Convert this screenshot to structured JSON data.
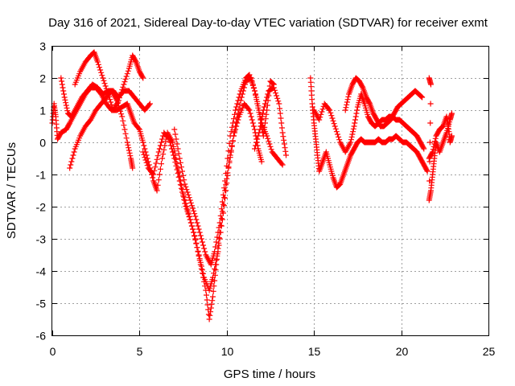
{
  "chart_data": {
    "type": "scatter",
    "title": "Day 316 of 2021, Sidereal Day-to-day VTEC variation (SDTVAR) for receiver exmt",
    "xlabel": "GPS time / hours",
    "ylabel": "SDTVAR / TECUs",
    "xlim": [
      0,
      25
    ],
    "ylim": [
      -6,
      3
    ],
    "xticks": [
      0,
      5,
      10,
      15,
      20,
      25
    ],
    "yticks": [
      -6,
      -5,
      -4,
      -3,
      -2,
      -1,
      0,
      1,
      2,
      3
    ],
    "grid": true,
    "marker": "plus",
    "color": "#ff0000",
    "series": [
      {
        "segments": [
          [
            [
              0.0,
              0.6
            ],
            [
              0.1,
              1.2
            ],
            [
              0.2,
              0.8
            ],
            [
              0.3,
              0.1
            ],
            [
              0.5,
              0.3
            ],
            [
              0.8,
              0.4
            ],
            [
              1.0,
              0.6
            ],
            [
              1.3,
              0.9
            ],
            [
              1.6,
              1.2
            ],
            [
              1.9,
              1.5
            ],
            [
              2.2,
              1.7
            ],
            [
              2.5,
              1.7
            ],
            [
              2.8,
              1.5
            ],
            [
              3.1,
              1.2
            ],
            [
              3.4,
              1.0
            ],
            [
              3.7,
              1.0
            ],
            [
              4.0,
              1.1
            ],
            [
              4.3,
              1.2
            ],
            [
              4.5,
              0.9
            ],
            [
              4.7,
              0.6
            ],
            [
              5.0,
              0.4
            ],
            [
              5.2,
              0.0
            ],
            [
              5.5,
              -0.6
            ],
            [
              5.8,
              -1.2
            ],
            [
              6.0,
              -1.5
            ],
            [
              6.3,
              -0.5
            ],
            [
              6.6,
              0.3
            ],
            [
              6.9,
              0.0
            ],
            [
              7.2,
              -0.8
            ],
            [
              7.5,
              -1.6
            ],
            [
              7.8,
              -2.2
            ],
            [
              8.1,
              -2.8
            ],
            [
              8.4,
              -3.5
            ],
            [
              8.7,
              -4.2
            ],
            [
              9.0,
              -4.6
            ],
            [
              9.2,
              -4.2
            ],
            [
              9.5,
              -3.4
            ],
            [
              9.8,
              -2.2
            ],
            [
              10.1,
              -0.8
            ],
            [
              10.4,
              0.2
            ],
            [
              10.7,
              0.8
            ],
            [
              11.0,
              1.2
            ],
            [
              11.3,
              1.0
            ],
            [
              11.6,
              0.4
            ],
            [
              11.8,
              -0.2
            ],
            [
              12.0,
              -0.6
            ]
          ],
          [
            [
              0.5,
              2.0
            ],
            [
              0.7,
              1.4
            ],
            [
              0.9,
              0.9
            ],
            [
              1.1,
              0.8
            ],
            [
              1.4,
              1.1
            ],
            [
              1.7,
              1.4
            ],
            [
              2.0,
              1.6
            ],
            [
              2.3,
              1.8
            ],
            [
              2.6,
              1.7
            ],
            [
              2.9,
              1.5
            ],
            [
              3.2,
              1.6
            ],
            [
              3.5,
              1.6
            ],
            [
              3.8,
              1.4
            ],
            [
              4.1,
              1.6
            ],
            [
              4.4,
              1.6
            ],
            [
              4.7,
              1.4
            ],
            [
              5.0,
              1.2
            ],
            [
              5.3,
              1.0
            ],
            [
              5.6,
              1.2
            ]
          ],
          [
            [
              1.0,
              -0.8
            ],
            [
              1.3,
              -0.2
            ],
            [
              1.6,
              0.2
            ],
            [
              1.9,
              0.5
            ],
            [
              2.2,
              0.7
            ],
            [
              2.5,
              1.0
            ],
            [
              2.8,
              1.2
            ],
            [
              3.1,
              1.4
            ],
            [
              3.4,
              1.6
            ],
            [
              3.7,
              1.3
            ],
            [
              4.0,
              0.8
            ],
            [
              4.3,
              0.0
            ],
            [
              4.5,
              -0.5
            ],
            [
              4.6,
              -0.8
            ]
          ],
          [
            [
              1.3,
              1.8
            ],
            [
              1.6,
              2.2
            ],
            [
              1.9,
              2.5
            ],
            [
              2.2,
              2.7
            ],
            [
              2.4,
              2.8
            ],
            [
              2.6,
              2.5
            ],
            [
              2.9,
              2.0
            ],
            [
              3.2,
              1.5
            ],
            [
              3.5,
              1.0
            ],
            [
              3.8,
              1.3
            ],
            [
              4.1,
              1.8
            ],
            [
              4.4,
              2.3
            ],
            [
              4.6,
              2.7
            ],
            [
              4.8,
              2.5
            ],
            [
              5.0,
              2.2
            ],
            [
              5.2,
              2.0
            ]
          ],
          [
            [
              5.2,
              -0.3
            ],
            [
              5.5,
              -0.8
            ],
            [
              5.8,
              -1.0
            ],
            [
              6.1,
              -0.3
            ],
            [
              6.4,
              0.3
            ],
            [
              6.7,
              0.1
            ],
            [
              7.0,
              -0.5
            ],
            [
              7.3,
              -1.2
            ],
            [
              7.6,
              -1.9
            ],
            [
              7.9,
              -2.4
            ],
            [
              8.2,
              -3.0
            ],
            [
              8.5,
              -3.8
            ],
            [
              8.8,
              -4.6
            ],
            [
              9.0,
              -5.5
            ],
            [
              9.2,
              -4.8
            ],
            [
              9.4,
              -3.8
            ],
            [
              9.6,
              -2.8
            ],
            [
              9.9,
              -1.5
            ],
            [
              10.2,
              -0.4
            ],
            [
              10.5,
              0.5
            ],
            [
              10.8,
              1.3
            ],
            [
              11.1,
              1.9
            ],
            [
              11.4,
              2.0
            ],
            [
              11.7,
              1.4
            ],
            [
              12.0,
              0.6
            ],
            [
              12.3,
              0.2
            ],
            [
              12.6,
              -0.3
            ],
            [
              12.9,
              -0.5
            ],
            [
              13.2,
              -0.7
            ]
          ],
          [
            [
              7.0,
              0.4
            ],
            [
              7.3,
              -0.5
            ],
            [
              7.6,
              -1.3
            ],
            [
              7.9,
              -1.8
            ],
            [
              8.2,
              -2.3
            ],
            [
              8.5,
              -2.9
            ],
            [
              8.8,
              -3.5
            ],
            [
              9.1,
              -3.8
            ],
            [
              9.3,
              -3.4
            ],
            [
              9.6,
              -2.5
            ],
            [
              9.9,
              -1.2
            ],
            [
              10.2,
              0.2
            ],
            [
              10.5,
              1.0
            ],
            [
              10.8,
              1.6
            ],
            [
              11.1,
              2.0
            ],
            [
              11.3,
              2.1
            ],
            [
              11.6,
              1.6
            ],
            [
              11.9,
              0.8
            ],
            [
              12.1,
              0.2
            ],
            [
              12.3,
              1.0
            ],
            [
              12.5,
              1.9
            ],
            [
              12.7,
              1.8
            ]
          ],
          [
            [
              11.6,
              -0.2
            ],
            [
              11.9,
              0.4
            ],
            [
              12.1,
              1.0
            ],
            [
              12.4,
              1.6
            ],
            [
              12.7,
              1.7
            ],
            [
              13.0,
              1.2
            ],
            [
              13.2,
              0.3
            ],
            [
              13.4,
              -0.4
            ]
          ],
          [
            [
              14.8,
              2.0
            ],
            [
              14.9,
              1.2
            ],
            [
              15.0,
              0.6
            ],
            [
              15.1,
              0.1
            ],
            [
              15.2,
              -0.4
            ],
            [
              15.3,
              -0.9
            ],
            [
              15.5,
              -0.6
            ],
            [
              15.7,
              -0.3
            ],
            [
              15.9,
              -0.7
            ],
            [
              16.1,
              -1.1
            ],
            [
              16.3,
              -1.4
            ],
            [
              16.5,
              -1.3
            ],
            [
              16.7,
              -1.0
            ],
            [
              16.9,
              -0.7
            ],
            [
              17.1,
              -0.4
            ],
            [
              17.3,
              -0.2
            ],
            [
              17.5,
              0.0
            ],
            [
              17.7,
              0.1
            ],
            [
              17.9,
              0.0
            ],
            [
              18.1,
              0.0
            ],
            [
              18.3,
              0.0
            ],
            [
              18.5,
              0.0
            ],
            [
              18.7,
              0.1
            ],
            [
              18.9,
              0.0
            ],
            [
              19.1,
              0.0
            ],
            [
              19.3,
              0.1
            ],
            [
              19.5,
              0.1
            ],
            [
              19.7,
              0.2
            ],
            [
              19.9,
              0.1
            ],
            [
              20.1,
              0.0
            ],
            [
              20.3,
              0.0
            ],
            [
              20.5,
              -0.1
            ],
            [
              20.7,
              -0.2
            ],
            [
              20.9,
              -0.3
            ],
            [
              21.1,
              -0.5
            ],
            [
              21.3,
              -0.7
            ],
            [
              21.5,
              -0.9
            ]
          ],
          [
            [
              15.0,
              1.0
            ],
            [
              15.3,
              0.7
            ],
            [
              15.6,
              1.2
            ],
            [
              15.9,
              1.0
            ],
            [
              16.2,
              0.5
            ],
            [
              16.5,
              0.0
            ],
            [
              16.8,
              -0.3
            ],
            [
              17.1,
              0.0
            ],
            [
              17.3,
              0.5
            ],
            [
              17.5,
              1.1
            ],
            [
              17.7,
              1.5
            ],
            [
              17.9,
              1.2
            ],
            [
              18.1,
              0.8
            ],
            [
              18.3,
              0.6
            ],
            [
              18.5,
              0.5
            ],
            [
              18.7,
              0.6
            ],
            [
              18.9,
              0.7
            ],
            [
              19.1,
              0.7
            ],
            [
              19.3,
              0.8
            ],
            [
              19.5,
              0.8
            ],
            [
              19.7,
              0.7
            ],
            [
              19.9,
              0.7
            ],
            [
              20.1,
              0.6
            ],
            [
              20.3,
              0.5
            ],
            [
              20.5,
              0.4
            ],
            [
              20.7,
              0.3
            ],
            [
              20.9,
              0.2
            ],
            [
              21.1,
              0.0
            ],
            [
              21.3,
              -0.2
            ]
          ],
          [
            [
              16.8,
              1.0
            ],
            [
              17.0,
              1.5
            ],
            [
              17.2,
              1.8
            ],
            [
              17.4,
              2.0
            ],
            [
              17.6,
              1.9
            ],
            [
              17.8,
              1.7
            ],
            [
              18.0,
              1.4
            ],
            [
              18.2,
              1.2
            ],
            [
              18.4,
              0.9
            ],
            [
              18.6,
              0.7
            ],
            [
              18.8,
              0.5
            ],
            [
              19.0,
              0.5
            ],
            [
              19.2,
              0.6
            ],
            [
              19.4,
              0.7
            ],
            [
              19.6,
              0.9
            ],
            [
              19.8,
              1.1
            ],
            [
              20.0,
              1.2
            ],
            [
              20.2,
              1.3
            ],
            [
              20.4,
              1.4
            ],
            [
              20.6,
              1.5
            ],
            [
              20.8,
              1.6
            ],
            [
              21.0,
              1.5
            ],
            [
              21.2,
              1.4
            ]
          ],
          [
            [
              21.6,
              2.0
            ],
            [
              21.7,
              1.8
            ],
            [
              21.6,
              -1.8
            ],
            [
              21.7,
              -1.5
            ],
            [
              21.8,
              -1.0
            ],
            [
              21.9,
              -0.5
            ],
            [
              22.0,
              0.0
            ],
            [
              22.2,
              -0.3
            ],
            [
              22.4,
              0.0
            ],
            [
              22.6,
              0.3
            ],
            [
              22.8,
              0.7
            ],
            [
              22.9,
              0.9
            ]
          ],
          [
            [
              21.6,
              -0.5
            ],
            [
              21.8,
              -0.3
            ],
            [
              22.0,
              0.2
            ],
            [
              22.2,
              0.4
            ],
            [
              22.4,
              0.5
            ],
            [
              22.6,
              0.8
            ],
            [
              22.7,
              0.5
            ],
            [
              22.8,
              0.0
            ],
            [
              22.9,
              0.2
            ]
          ]
        ]
      }
    ]
  }
}
